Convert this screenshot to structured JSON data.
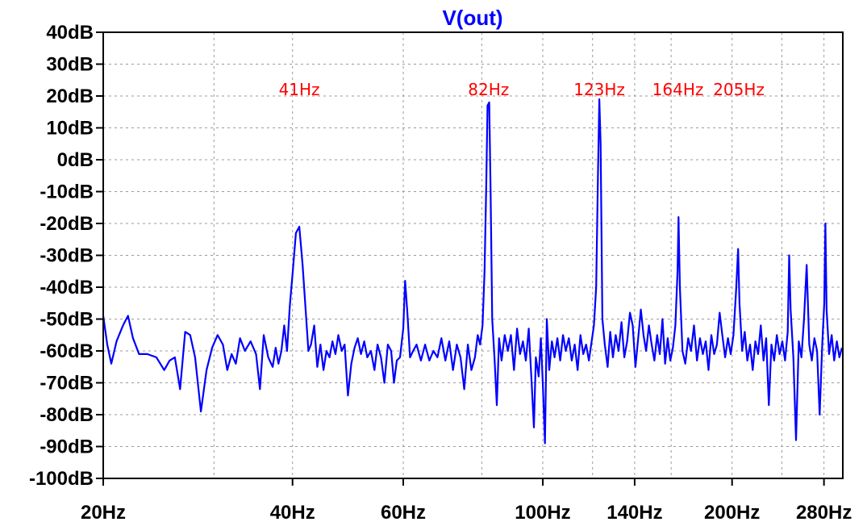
{
  "chart_data": {
    "type": "line",
    "title": "V(out)",
    "x_scale": "log",
    "xlim": [
      20,
      300
    ],
    "ylim": [
      -100,
      40
    ],
    "y_unit": "dB",
    "grid": true,
    "y_ticks": [
      {
        "value": 40,
        "label": "40dB"
      },
      {
        "value": 30,
        "label": "30dB"
      },
      {
        "value": 20,
        "label": "20dB"
      },
      {
        "value": 10,
        "label": "10dB"
      },
      {
        "value": 0,
        "label": "0dB"
      },
      {
        "value": -10,
        "label": "-10dB"
      },
      {
        "value": -20,
        "label": "-20dB"
      },
      {
        "value": -30,
        "label": "-30dB"
      },
      {
        "value": -40,
        "label": "-40dB"
      },
      {
        "value": -50,
        "label": "-50dB"
      },
      {
        "value": -60,
        "label": "-60dB"
      },
      {
        "value": -70,
        "label": "-70dB"
      },
      {
        "value": -80,
        "label": "-80dB"
      },
      {
        "value": -90,
        "label": "-90dB"
      },
      {
        "value": -100,
        "label": "-100dB"
      }
    ],
    "x_ticks": [
      {
        "value": 20,
        "label": "20Hz"
      },
      {
        "value": 40,
        "label": "40Hz"
      },
      {
        "value": 60,
        "label": "60Hz"
      },
      {
        "value": 100,
        "label": "100Hz"
      },
      {
        "value": 140,
        "label": "140Hz"
      },
      {
        "value": 200,
        "label": "200Hz"
      },
      {
        "value": 280,
        "label": "280Hz"
      }
    ],
    "x_minor_gridlines": [
      30,
      80,
      120,
      160,
      240
    ],
    "annotations": [
      {
        "x": 41,
        "y": 22,
        "text": "41Hz"
      },
      {
        "x": 82,
        "y": 22,
        "text": "82Hz"
      },
      {
        "x": 123,
        "y": 22,
        "text": "123Hz"
      },
      {
        "x": 164,
        "y": 22,
        "text": "164Hz"
      },
      {
        "x": 205,
        "y": 22,
        "text": "205Hz"
      }
    ],
    "colors": {
      "trace": "#0000ff",
      "annotation": "#ff0000",
      "title": "#0000ff",
      "grid": "#9a9a9a"
    },
    "series": [
      {
        "values": [
          [
            20,
            -49
          ],
          [
            20.3,
            -58
          ],
          [
            20.6,
            -64
          ],
          [
            21,
            -57
          ],
          [
            21.5,
            -52
          ],
          [
            21.9,
            -49
          ],
          [
            22.3,
            -56
          ],
          [
            22.8,
            -61
          ],
          [
            23.5,
            -61
          ],
          [
            24.3,
            -62
          ],
          [
            25,
            -66
          ],
          [
            25.5,
            -63
          ],
          [
            26,
            -62
          ],
          [
            26.5,
            -72
          ],
          [
            27,
            -54
          ],
          [
            27.5,
            -55
          ],
          [
            28,
            -62
          ],
          [
            28.6,
            -79
          ],
          [
            29.2,
            -66
          ],
          [
            29.8,
            -59
          ],
          [
            30.4,
            -55
          ],
          [
            31,
            -58
          ],
          [
            31.5,
            -66
          ],
          [
            32,
            -61
          ],
          [
            32.5,
            -64
          ],
          [
            33,
            -56
          ],
          [
            33.6,
            -60
          ],
          [
            34.3,
            -57
          ],
          [
            35,
            -61
          ],
          [
            35.5,
            -72
          ],
          [
            36,
            -55
          ],
          [
            36.6,
            -62
          ],
          [
            37.2,
            -65
          ],
          [
            37.6,
            -59
          ],
          [
            38,
            -64
          ],
          [
            38.4,
            -60
          ],
          [
            38.8,
            -52
          ],
          [
            39.2,
            -60
          ],
          [
            39.6,
            -46
          ],
          [
            40,
            -36
          ],
          [
            40.5,
            -23
          ],
          [
            41,
            -21
          ],
          [
            41.5,
            -33
          ],
          [
            42,
            -48
          ],
          [
            42.4,
            -60
          ],
          [
            42.8,
            -58
          ],
          [
            43.3,
            -52
          ],
          [
            43.8,
            -65
          ],
          [
            44.3,
            -58
          ],
          [
            44.8,
            -66
          ],
          [
            45.3,
            -60
          ],
          [
            45.8,
            -62
          ],
          [
            46.3,
            -57
          ],
          [
            46.8,
            -61
          ],
          [
            47.3,
            -55
          ],
          [
            47.9,
            -60
          ],
          [
            48.4,
            -58
          ],
          [
            49,
            -74
          ],
          [
            49.6,
            -64
          ],
          [
            50.2,
            -59
          ],
          [
            50.8,
            -56
          ],
          [
            51.4,
            -61
          ],
          [
            52,
            -57
          ],
          [
            52.6,
            -62
          ],
          [
            53.3,
            -60
          ],
          [
            54,
            -66
          ],
          [
            54.6,
            -58
          ],
          [
            55.3,
            -62
          ],
          [
            56,
            -70
          ],
          [
            56.7,
            -58
          ],
          [
            57.4,
            -60
          ],
          [
            58,
            -70
          ],
          [
            58.6,
            -63
          ],
          [
            59.3,
            -62
          ],
          [
            60,
            -53
          ],
          [
            60.4,
            -38
          ],
          [
            60.9,
            -48
          ],
          [
            61.5,
            -62
          ],
          [
            62.2,
            -60
          ],
          [
            63,
            -58
          ],
          [
            64,
            -63
          ],
          [
            65,
            -58
          ],
          [
            66,
            -63
          ],
          [
            67,
            -60
          ],
          [
            68,
            -62
          ],
          [
            69,
            -56
          ],
          [
            70,
            -63
          ],
          [
            71,
            -57
          ],
          [
            72,
            -66
          ],
          [
            73,
            -58
          ],
          [
            74,
            -62
          ],
          [
            75,
            -72
          ],
          [
            76,
            -58
          ],
          [
            77,
            -66
          ],
          [
            78,
            -62
          ],
          [
            78.8,
            -55
          ],
          [
            79.5,
            -58
          ],
          [
            80.2,
            -52
          ],
          [
            80.8,
            -35
          ],
          [
            81.3,
            -8
          ],
          [
            81.7,
            17
          ],
          [
            82.2,
            18
          ],
          [
            82.6,
            -10
          ],
          [
            83.1,
            -50
          ],
          [
            83.8,
            -62
          ],
          [
            84.5,
            -77
          ],
          [
            85.2,
            -56
          ],
          [
            86,
            -63
          ],
          [
            87,
            -55
          ],
          [
            88,
            -60
          ],
          [
            89,
            -55
          ],
          [
            90,
            -66
          ],
          [
            91,
            -53
          ],
          [
            92,
            -61
          ],
          [
            93,
            -57
          ],
          [
            94,
            -63
          ],
          [
            95,
            -53
          ],
          [
            96,
            -70
          ],
          [
            96.8,
            -84
          ],
          [
            97.5,
            -62
          ],
          [
            98.5,
            -68
          ],
          [
            99.3,
            -56
          ],
          [
            100,
            -70
          ],
          [
            100.8,
            -89
          ],
          [
            101.5,
            -50
          ],
          [
            102.4,
            -66
          ],
          [
            103.4,
            -57
          ],
          [
            104.4,
            -62
          ],
          [
            105.5,
            -56
          ],
          [
            106.6,
            -63
          ],
          [
            107.7,
            -55
          ],
          [
            108.8,
            -60
          ],
          [
            110,
            -56
          ],
          [
            111.2,
            -63
          ],
          [
            112.4,
            -58
          ],
          [
            113.6,
            -66
          ],
          [
            114.8,
            -55
          ],
          [
            116,
            -61
          ],
          [
            117.2,
            -58
          ],
          [
            118.4,
            -63
          ],
          [
            119.6,
            -57
          ],
          [
            120.6,
            -52
          ],
          [
            121.6,
            -40
          ],
          [
            122.4,
            -5
          ],
          [
            123,
            19
          ],
          [
            123.6,
            5
          ],
          [
            124.4,
            -50
          ],
          [
            125.5,
            -58
          ],
          [
            126.8,
            -65
          ],
          [
            128,
            -54
          ],
          [
            129.3,
            -62
          ],
          [
            130.6,
            -55
          ],
          [
            132,
            -60
          ],
          [
            133.4,
            -51
          ],
          [
            134.8,
            -62
          ],
          [
            136.2,
            -57
          ],
          [
            137.6,
            -48
          ],
          [
            139,
            -52
          ],
          [
            140.4,
            -65
          ],
          [
            141.8,
            -56
          ],
          [
            143.2,
            -47
          ],
          [
            144.6,
            -55
          ],
          [
            146,
            -60
          ],
          [
            147.5,
            -52
          ],
          [
            149,
            -58
          ],
          [
            150.5,
            -63
          ],
          [
            152,
            -55
          ],
          [
            153.5,
            -61
          ],
          [
            155,
            -50
          ],
          [
            156.5,
            -64
          ],
          [
            158,
            -56
          ],
          [
            159.5,
            -63
          ],
          [
            161,
            -59
          ],
          [
            162.5,
            -52
          ],
          [
            163.8,
            -35
          ],
          [
            164.4,
            -18
          ],
          [
            165.2,
            -40
          ],
          [
            166.8,
            -60
          ],
          [
            168.5,
            -64
          ],
          [
            170.3,
            -56
          ],
          [
            172.1,
            -60
          ],
          [
            174,
            -52
          ],
          [
            175.9,
            -63
          ],
          [
            177.8,
            -56
          ],
          [
            179.7,
            -61
          ],
          [
            181.6,
            -57
          ],
          [
            183.5,
            -66
          ],
          [
            185.4,
            -55
          ],
          [
            187.3,
            -61
          ],
          [
            189.2,
            -58
          ],
          [
            191.1,
            -48
          ],
          [
            193,
            -55
          ],
          [
            195,
            -62
          ],
          [
            197,
            -56
          ],
          [
            199,
            -61
          ],
          [
            201,
            -55
          ],
          [
            203,
            -41
          ],
          [
            204.5,
            -28
          ],
          [
            205.5,
            -45
          ],
          [
            207.5,
            -60
          ],
          [
            209.5,
            -54
          ],
          [
            211.5,
            -63
          ],
          [
            213.6,
            -58
          ],
          [
            215.7,
            -66
          ],
          [
            217.8,
            -57
          ],
          [
            220,
            -61
          ],
          [
            222.2,
            -52
          ],
          [
            224.4,
            -63
          ],
          [
            226.6,
            -56
          ],
          [
            228.8,
            -77
          ],
          [
            231,
            -58
          ],
          [
            233.3,
            -63
          ],
          [
            235.6,
            -55
          ],
          [
            238,
            -61
          ],
          [
            240.4,
            -57
          ],
          [
            242.8,
            -63
          ],
          [
            245.2,
            -54
          ],
          [
            246.5,
            -30
          ],
          [
            247.8,
            -47
          ],
          [
            250.3,
            -62
          ],
          [
            252.8,
            -88
          ],
          [
            255.3,
            -57
          ],
          [
            257.8,
            -62
          ],
          [
            260.3,
            -50
          ],
          [
            262.8,
            -33
          ],
          [
            265.3,
            -58
          ],
          [
            267.8,
            -63
          ],
          [
            270.4,
            -56
          ],
          [
            273,
            -60
          ],
          [
            275.6,
            -80
          ],
          [
            278.2,
            -58
          ],
          [
            280.3,
            -45
          ],
          [
            281.5,
            -20
          ],
          [
            282.7,
            -47
          ],
          [
            285.3,
            -61
          ],
          [
            288,
            -55
          ],
          [
            290.7,
            -63
          ],
          [
            293.5,
            -57
          ],
          [
            296.3,
            -62
          ],
          [
            299,
            -59
          ]
        ]
      }
    ]
  }
}
